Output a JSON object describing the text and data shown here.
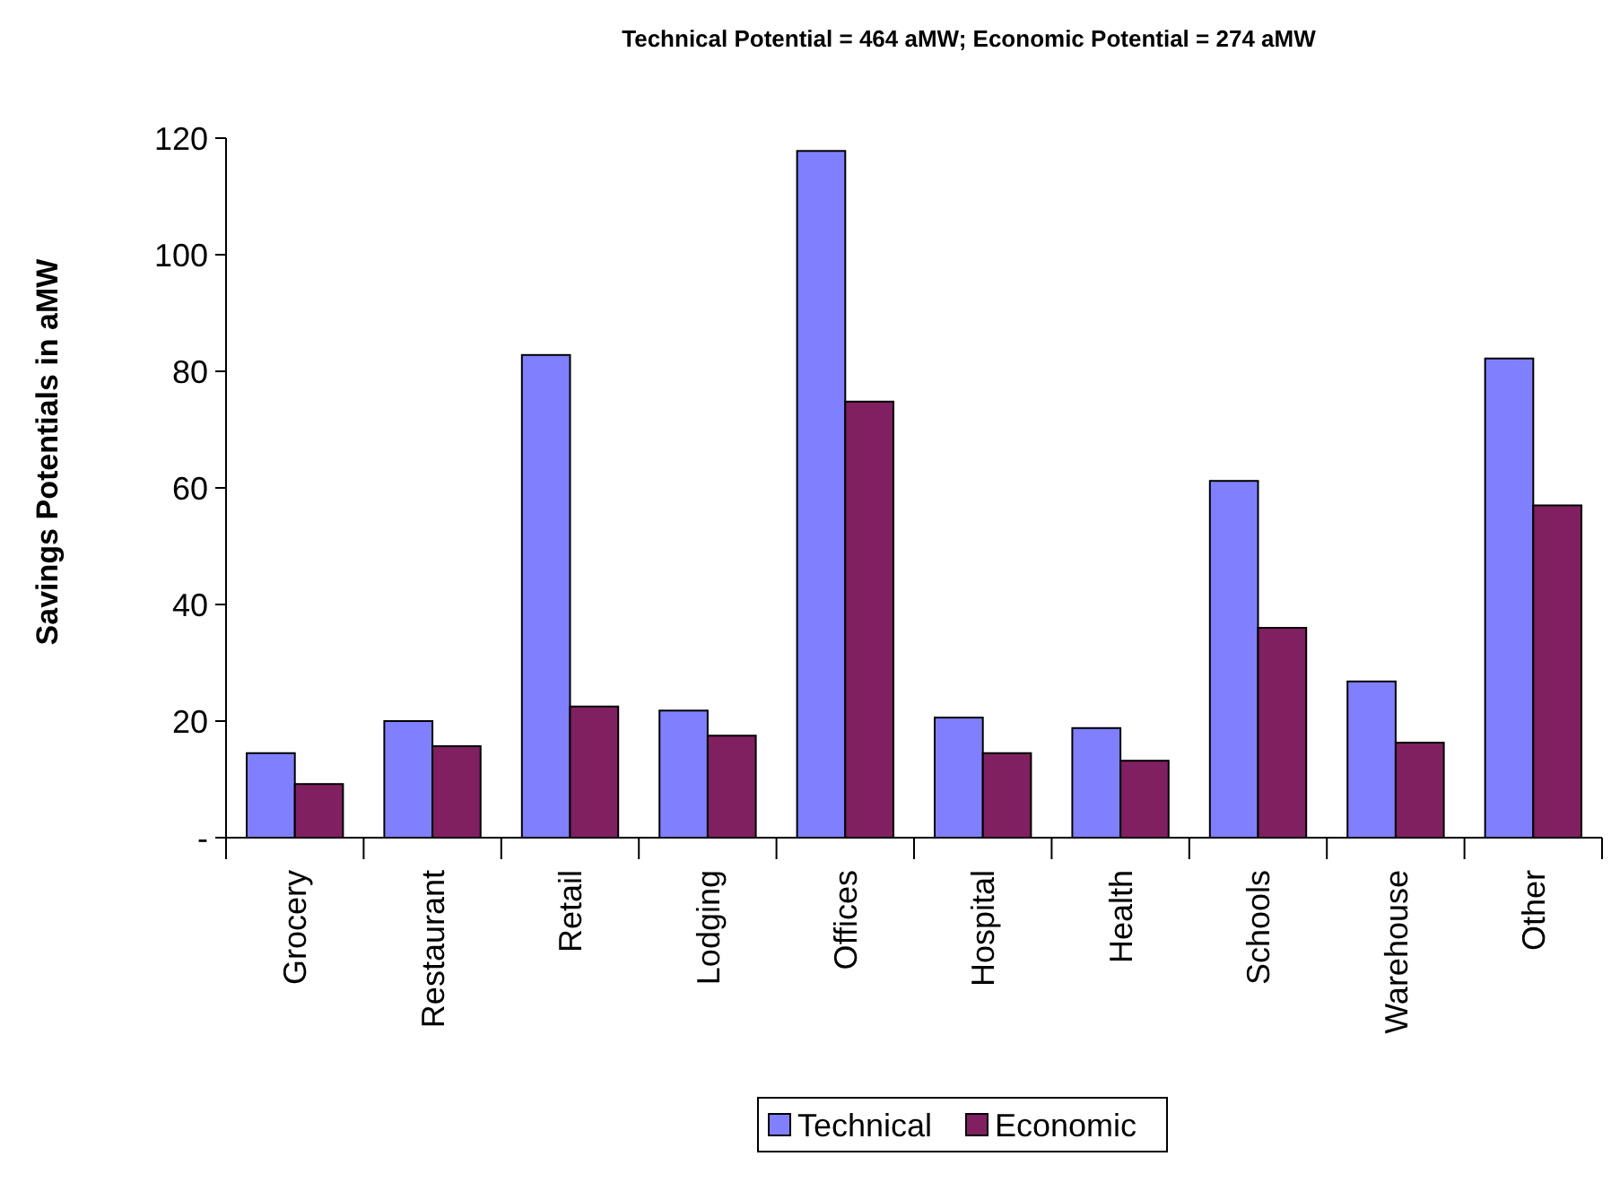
{
  "chart_data": {
    "type": "bar",
    "title": "Technical Potential = 464 aMW; Economic Potential = 274 aMW",
    "ylabel": "Savings Potentials in aMW",
    "categories": [
      "Grocery",
      "Restaurant",
      "Retail",
      "Lodging",
      "Offices",
      "Hospital",
      "Health",
      "Schools",
      "Warehouse",
      "Other"
    ],
    "series": [
      {
        "name": "Technical",
        "color": "#8080ff",
        "values": [
          14.5,
          20,
          82.8,
          21.8,
          117.8,
          20.6,
          18.8,
          61.2,
          26.8,
          82.2
        ]
      },
      {
        "name": "Economic",
        "color": "#802060",
        "values": [
          9.2,
          15.7,
          22.5,
          17.5,
          74.8,
          14.5,
          13.2,
          36,
          16.3,
          57
        ]
      }
    ],
    "ylim": [
      0,
      120
    ],
    "yticks": [
      {
        "value": 0,
        "label": "-"
      },
      20,
      40,
      60,
      80,
      100,
      120
    ],
    "grid": false,
    "legend": "bottom"
  }
}
